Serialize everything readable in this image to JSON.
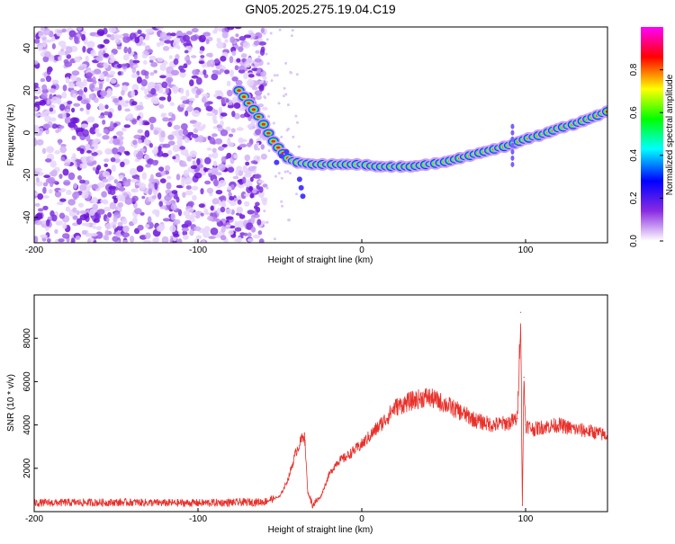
{
  "title": "GN05.2025.275.19.04.C19",
  "chart_data": [
    {
      "type": "heatmap",
      "xlabel": "Height of straight line (km)",
      "ylabel": "Frequency (Hz)",
      "xlim": [
        -200,
        150
      ],
      "ylim": [
        -52,
        50
      ],
      "xticks": [
        "-200",
        "-100",
        "0",
        "100"
      ],
      "xtick_values": [
        -200,
        -100,
        0,
        100
      ],
      "yticks": [
        "40",
        "20",
        "0",
        "-20",
        "-40"
      ],
      "ytick_values": [
        40,
        20,
        0,
        -20,
        -40
      ],
      "grid": false,
      "noise_region_x": [
        -200,
        -65
      ],
      "ridge": {
        "x": [
          -75,
          -70,
          -65,
          -60,
          -55,
          -50,
          -45,
          -40,
          -30,
          -20,
          -10,
          0,
          10,
          20,
          30,
          40,
          50,
          60,
          70,
          80,
          90,
          100,
          110,
          120,
          130,
          140,
          150
        ],
        "y": [
          20,
          15,
          10,
          4,
          -3,
          -8,
          -12,
          -14,
          -15,
          -15,
          -15,
          -15,
          -16,
          -16,
          -16,
          -15,
          -14,
          -12,
          -10,
          -8,
          -6,
          -3,
          -1,
          2,
          4,
          7,
          10
        ]
      },
      "colorbar": {
        "label": "Normalized spectral amplitude",
        "range": [
          0,
          1
        ],
        "ticks": [
          "0.0",
          "0.2",
          "0.4",
          "0.6",
          "0.8"
        ],
        "tick_values": [
          0,
          0.2,
          0.4,
          0.6,
          0.8
        ],
        "colors": [
          "#ffffff",
          "#8a2be2",
          "#0000ff",
          "#00ffff",
          "#00ff00",
          "#ffff00",
          "#ff0000",
          "#ff00ff"
        ]
      }
    },
    {
      "type": "line",
      "xlabel": "Height of straight line (km)",
      "ylabel": "SNR (10 * v/v)",
      "xlim": [
        -200,
        150
      ],
      "ylim": [
        0,
        10000
      ],
      "xticks": [
        "-200",
        "-100",
        "0",
        "100"
      ],
      "xtick_values": [
        -200,
        -100,
        0,
        100
      ],
      "yticks": [
        "2000",
        "4000",
        "6000",
        "8000"
      ],
      "ytick_values": [
        2000,
        4000,
        6000,
        8000
      ],
      "grid": false,
      "series": [
        {
          "color": "#e8302a",
          "x": [
            -200,
            -180,
            -160,
            -140,
            -120,
            -100,
            -80,
            -60,
            -50,
            -45,
            -40,
            -35,
            -33,
            -30,
            -25,
            -20,
            -15,
            -10,
            -5,
            0,
            5,
            10,
            15,
            20,
            30,
            40,
            50,
            60,
            70,
            80,
            90,
            95,
            97,
            98,
            99,
            100,
            105,
            110,
            120,
            130,
            140,
            150
          ],
          "values": [
            400,
            420,
            420,
            430,
            400,
            400,
            420,
            450,
            700,
            1500,
            2800,
            3600,
            900,
            300,
            700,
            1700,
            2300,
            2500,
            2800,
            3100,
            3500,
            3900,
            4300,
            4800,
            5100,
            5300,
            5000,
            4600,
            4200,
            4000,
            4100,
            4300,
            9200,
            300,
            6200,
            4000,
            3800,
            3900,
            4000,
            3800,
            3700,
            3500
          ]
        }
      ]
    }
  ]
}
